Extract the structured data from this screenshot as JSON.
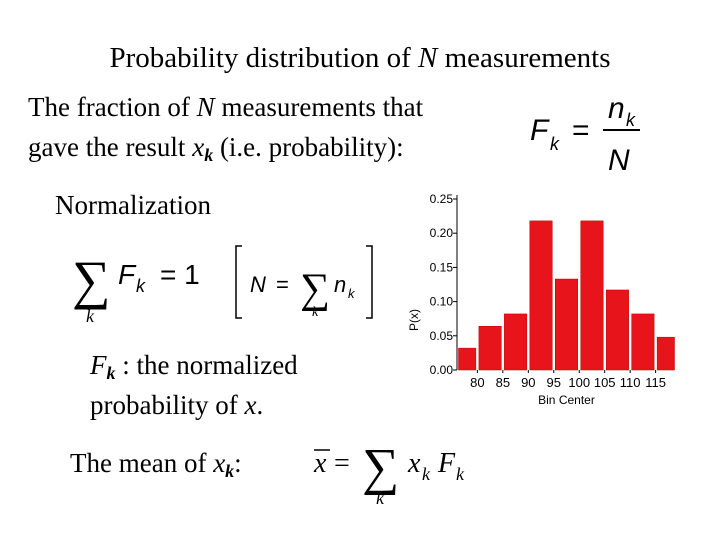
{
  "title": [
    "Probability distribution of ",
    "N",
    " measurements"
  ],
  "fraction_text": {
    "line1": [
      "The fraction of ",
      "N",
      " measurements that"
    ],
    "line2": [
      "gave the result ",
      "x",
      "k",
      " (i.e. probability):"
    ]
  },
  "normalization": "Normalization",
  "fk_text": {
    "line1": [
      "F",
      "k",
      " : the normalized"
    ],
    "line2": [
      "probability of ",
      "x",
      "."
    ]
  },
  "mean_text": [
    "The mean of ",
    "x",
    "k",
    ":"
  ],
  "formulas": {
    "fraction": {
      "lhs": "F",
      "lhs_sub": "k",
      "eq": "=",
      "num": "n",
      "num_sub": "k",
      "den": "N"
    },
    "norm": {
      "sum": "∑",
      "sum_sub": "k",
      "term": "F",
      "term_sub": "k",
      "eq": "= 1"
    },
    "count": {
      "lhs": "N",
      "eq": "=",
      "sum": "∑",
      "sum_sub": "k",
      "term": "n",
      "term_sub": "k"
    },
    "mean": {
      "lhs": "x",
      "eq": "=",
      "sum": "∑",
      "sum_sub": "k",
      "t1": "x",
      "t1_sub": "k",
      "t2": "F",
      "t2_sub": "k"
    }
  },
  "chart_data": {
    "type": "histogram",
    "xlabel": "Bin Center",
    "ylabel": "P(x)",
    "bins": [
      75,
      80,
      85,
      90,
      95,
      100,
      105,
      110,
      115,
      120
    ],
    "values": [
      0.032,
      0.064,
      0.082,
      0.218,
      0.133,
      0.218,
      0.117,
      0.082,
      0.048
    ],
    "color": "#e8141b",
    "xlim": [
      76,
      119
    ],
    "xticks": [
      80,
      85,
      90,
      95,
      100,
      105,
      110,
      115
    ],
    "ylim": [
      0,
      0.25
    ],
    "yticks": [
      {
        "value": 0,
        "label": "0.00"
      },
      {
        "value": 0.05,
        "label": "0.05"
      },
      {
        "value": 0.1,
        "label": "0.10"
      },
      {
        "value": 0.15,
        "label": "0.15"
      },
      {
        "value": 0.2,
        "label": "0.20"
      },
      {
        "value": 0.25,
        "label": "0.25"
      }
    ]
  }
}
